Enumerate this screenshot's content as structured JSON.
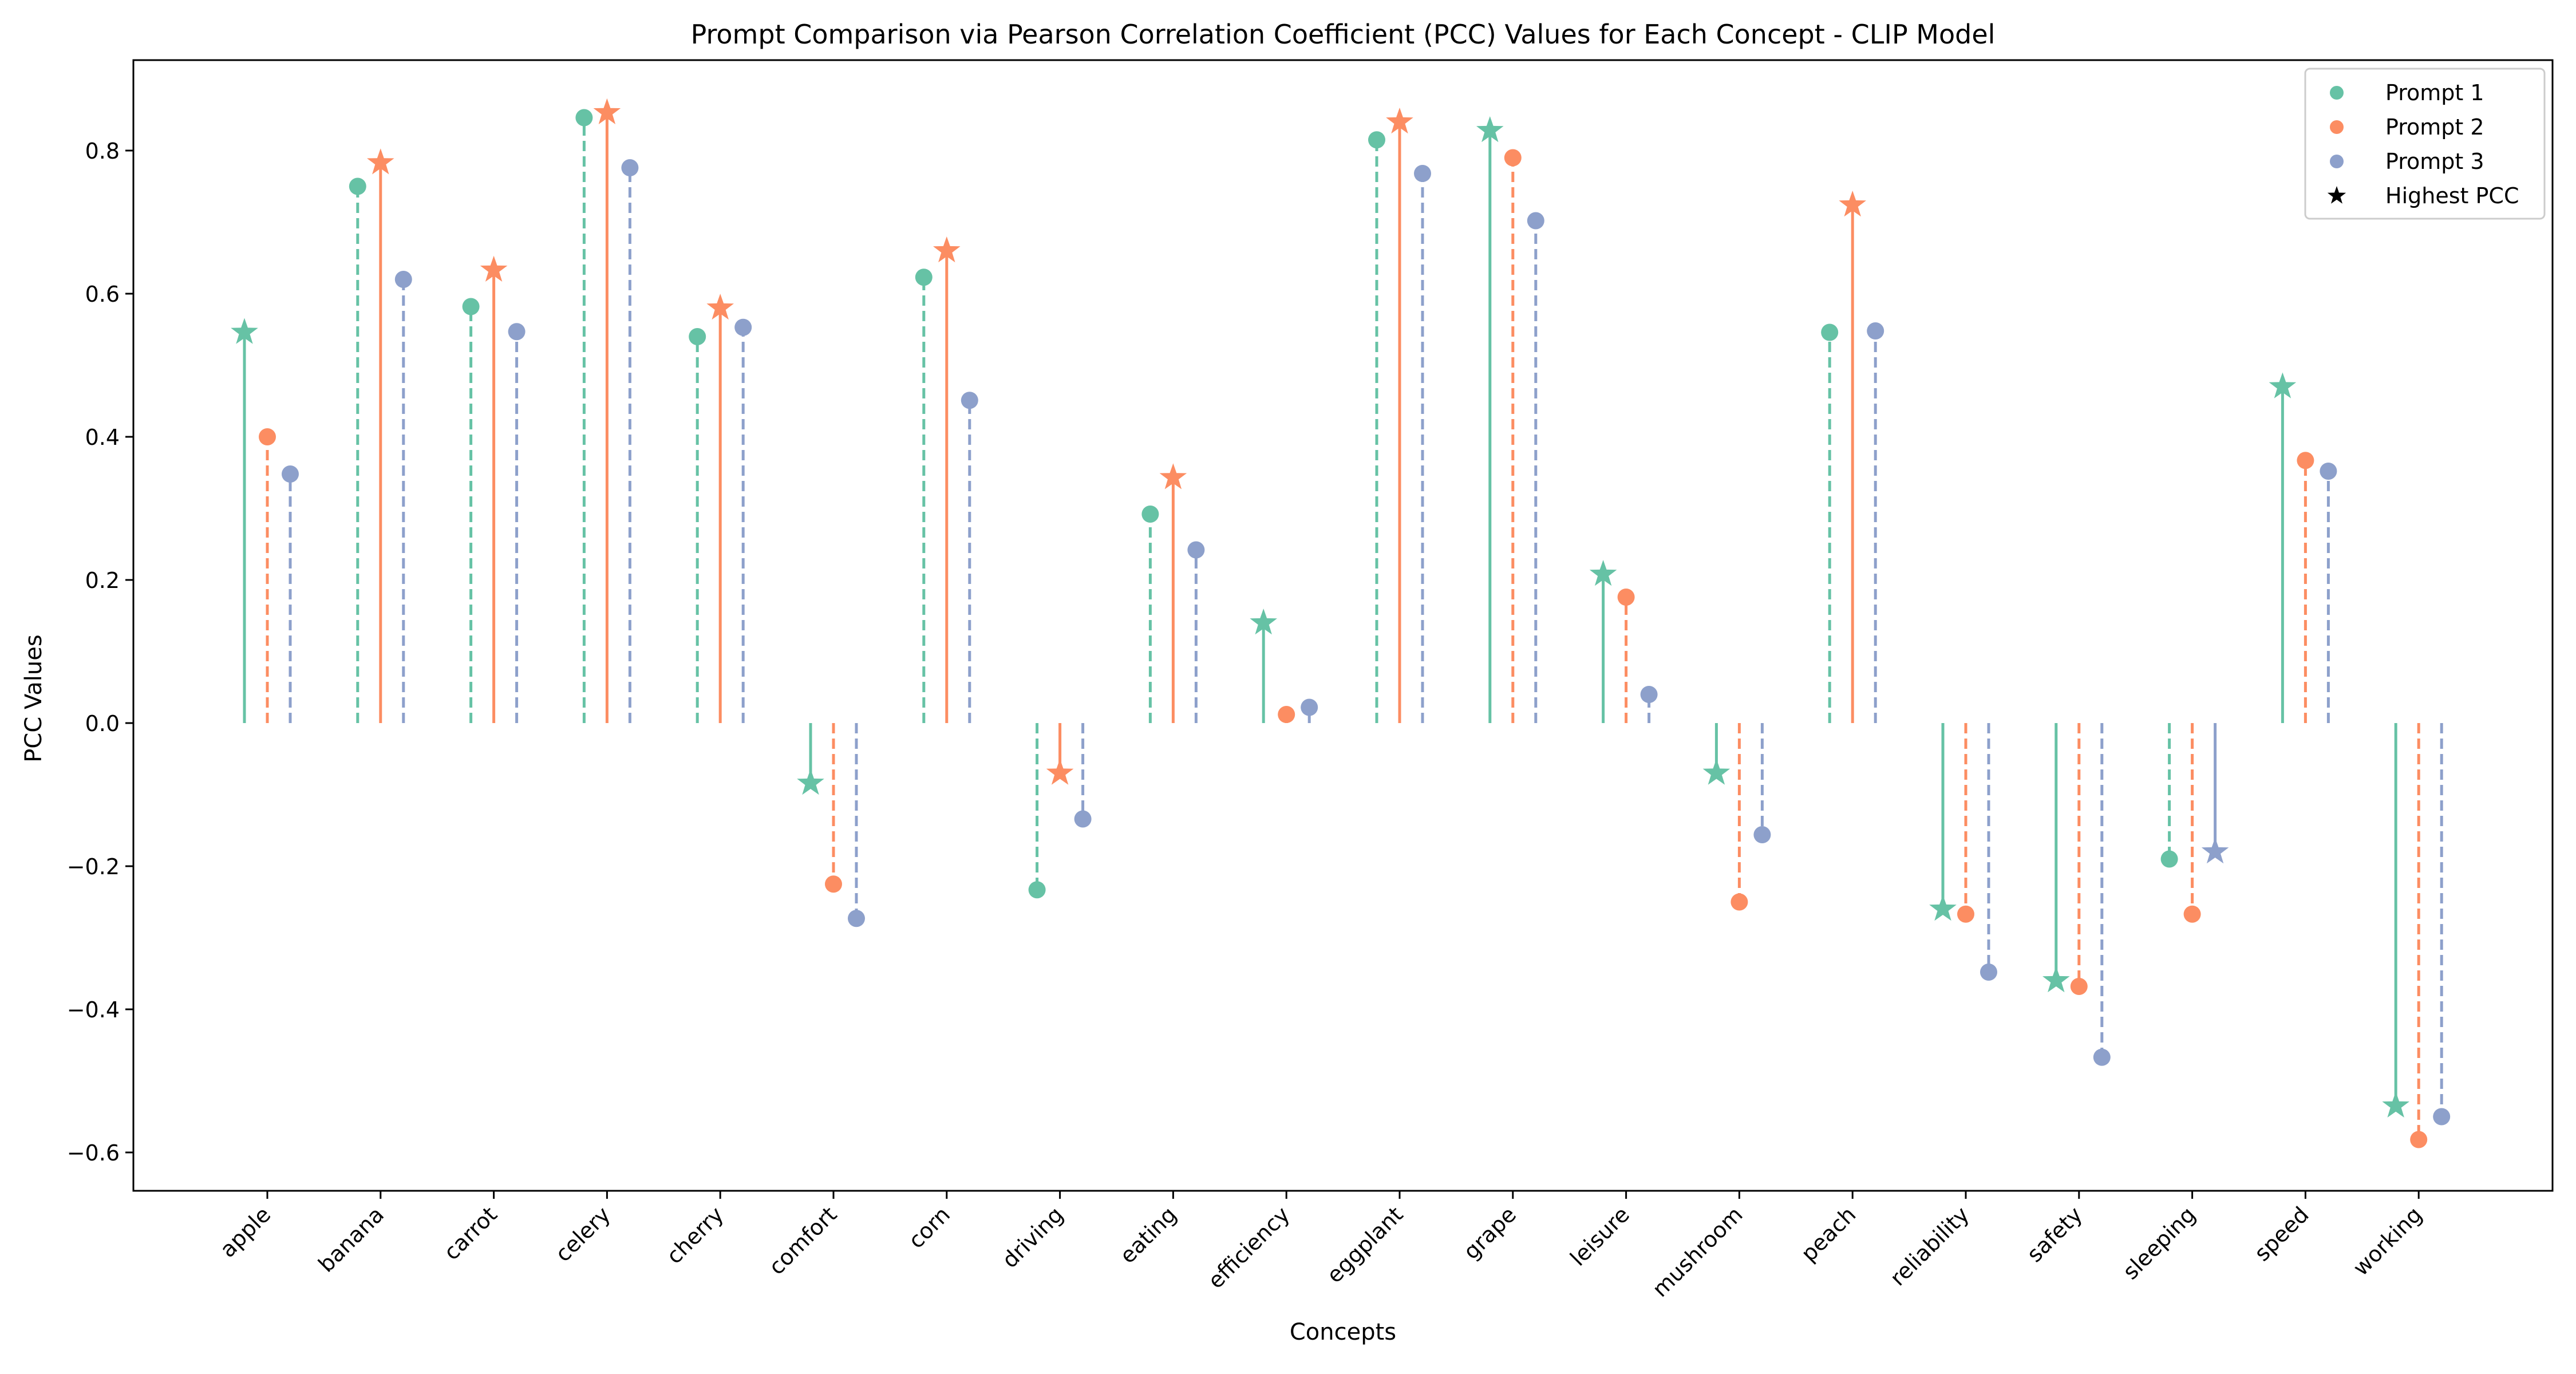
{
  "chart_data": {
    "type": "stem",
    "title": "Prompt Comparison via Pearson Correlation Coefficient (PCC) Values for Each Concept - CLIP Model",
    "xlabel": "Concepts",
    "ylabel": "PCC Values",
    "ylim": [
      -0.65,
      0.92
    ],
    "yticks": [
      -0.6,
      -0.4,
      -0.2,
      0.0,
      0.2,
      0.4,
      0.6,
      0.8
    ],
    "ytick_labels": [
      "−0.6",
      "−0.4",
      "−0.2",
      "0.0",
      "0.2",
      "0.4",
      "0.6",
      "0.8"
    ],
    "grid": false,
    "legend_position": "top-right",
    "categories": [
      "apple",
      "banana",
      "carrot",
      "celery",
      "cherry",
      "comfort",
      "corn",
      "driving",
      "eating",
      "efficiency",
      "eggplant",
      "grape",
      "leisure",
      "mushroom",
      "peach",
      "reliability",
      "safety",
      "sleeping",
      "speed",
      "working"
    ],
    "series": [
      {
        "name": "Prompt 1",
        "color": "#66c2a5",
        "values": [
          0.546,
          0.75,
          0.582,
          0.846,
          0.54,
          -0.084,
          0.623,
          -0.233,
          0.292,
          0.14,
          0.815,
          0.828,
          0.208,
          -0.07,
          0.546,
          -0.26,
          -0.36,
          -0.19,
          0.47,
          -0.535
        ]
      },
      {
        "name": "Prompt 2",
        "color": "#fc8d62",
        "values": [
          0.4,
          0.783,
          0.633,
          0.853,
          0.58,
          -0.225,
          0.66,
          -0.07,
          0.343,
          0.012,
          0.84,
          0.79,
          0.176,
          -0.25,
          0.724,
          -0.267,
          -0.368,
          -0.267,
          0.367,
          -0.582
        ]
      },
      {
        "name": "Prompt 3",
        "color": "#8da0cb",
        "values": [
          0.348,
          0.62,
          0.547,
          0.776,
          0.553,
          -0.273,
          0.451,
          -0.134,
          0.242,
          0.022,
          0.768,
          0.702,
          0.04,
          -0.156,
          0.548,
          -0.348,
          -0.467,
          -0.18,
          0.352,
          -0.55
        ]
      }
    ],
    "highest_marker": "star",
    "legend": [
      "Prompt 1",
      "Prompt 2",
      "Prompt 3",
      "Highest PCC"
    ]
  }
}
